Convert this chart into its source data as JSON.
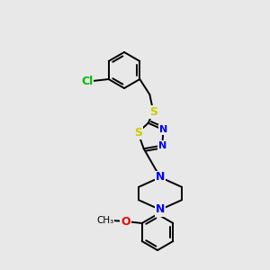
{
  "background_color": "#e8e8e8",
  "bond_color": "#000000",
  "atom_colors": {
    "Cl": "#00bb00",
    "S": "#cccc00",
    "N": "#0000ee",
    "O": "#ee0000",
    "C": "#000000"
  },
  "bond_width": 1.4,
  "figsize": [
    3.0,
    3.0
  ],
  "dpi": 100
}
